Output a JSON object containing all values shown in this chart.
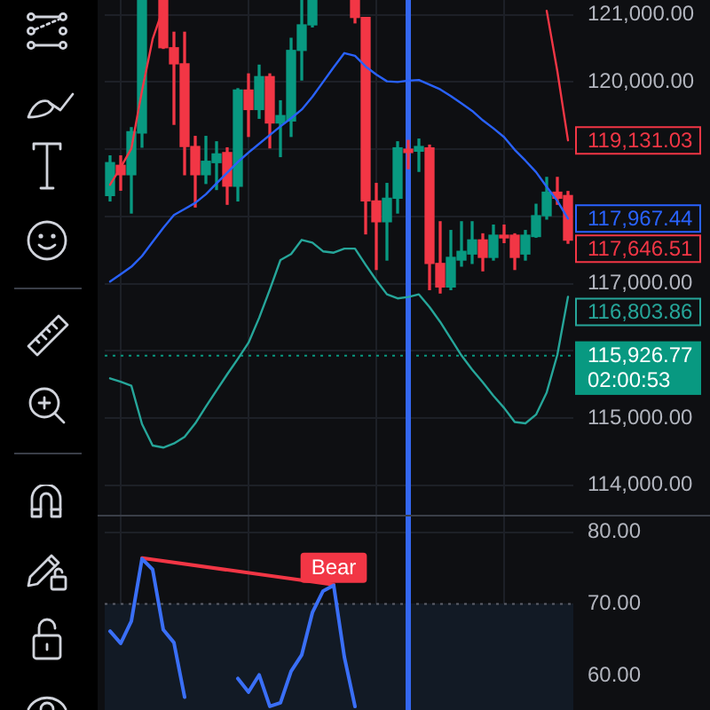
{
  "chart_data": [
    {
      "type": "candlestick",
      "categories": [
        null,
        null,
        null,
        null,
        null,
        null,
        null,
        null,
        null,
        null,
        null,
        null,
        null,
        null,
        null,
        null,
        null,
        null,
        null,
        null,
        null,
        null,
        null,
        null,
        null,
        null,
        null,
        null,
        null,
        null,
        null,
        null,
        null,
        null,
        null,
        null,
        null,
        null,
        null,
        null,
        null,
        null,
        null,
        null
      ],
      "ohlc": [
        [
          118310,
          118900,
          118230,
          118800
        ],
        [
          118760,
          118900,
          118390,
          118620
        ],
        [
          118620,
          119320,
          118050,
          119260
        ],
        [
          119240,
          121220,
          119030,
          121220
        ],
        null,
        [
          121220,
          121220,
          120500,
          120510
        ],
        [
          120510,
          120740,
          119370,
          120270
        ],
        [
          120270,
          120740,
          118620,
          119040
        ],
        [
          119040,
          119190,
          118140,
          118620
        ],
        [
          118620,
          119190,
          118490,
          118820
        ],
        [
          118800,
          119110,
          118400,
          118930
        ],
        [
          118950,
          119020,
          118180,
          118450
        ],
        [
          118450,
          119900,
          118230,
          119880
        ],
        [
          119880,
          120120,
          119190,
          119590
        ],
        [
          119590,
          120250,
          119460,
          120080
        ],
        [
          120080,
          120120,
          119020,
          119390
        ],
        [
          119390,
          119720,
          118890,
          119500
        ],
        [
          119420,
          120650,
          119190,
          120470
        ],
        [
          120470,
          121220,
          120030,
          120850
        ],
        [
          120850,
          121220,
          120820,
          121220
        ],
        null,
        null,
        null,
        [
          121220,
          121220,
          120880,
          120960
        ],
        [
          120960,
          120960,
          117740,
          118230
        ],
        [
          118230,
          118490,
          117210,
          117920
        ],
        [
          117920,
          118490,
          117350,
          118270
        ],
        [
          118270,
          119110,
          118050,
          119020
        ],
        [
          119000,
          119130,
          118710,
          118950
        ],
        [
          118970,
          119150,
          118670,
          119040
        ],
        [
          119020,
          119060,
          116910,
          117300
        ],
        [
          117300,
          117920,
          116860,
          116950
        ],
        [
          116950,
          117790,
          116910,
          117390
        ],
        [
          117350,
          117920,
          117260,
          117480
        ],
        [
          117440,
          117920,
          117300,
          117650
        ],
        [
          117650,
          117740,
          117190,
          117390
        ],
        [
          117390,
          117870,
          117350,
          117720
        ],
        [
          117720,
          117870,
          117610,
          117680
        ],
        [
          117720,
          117740,
          117210,
          117390
        ],
        [
          117440,
          117790,
          117350,
          117720
        ],
        [
          117700,
          118180,
          117690,
          118010
        ],
        [
          118010,
          118580,
          117960,
          118360
        ],
        [
          118360,
          118580,
          118180,
          118270
        ],
        [
          118310,
          118370,
          117600,
          117646.51
        ]
      ],
      "colors": [
        "#089981",
        "#f23645",
        "#089981",
        "#089981",
        null,
        "#f23645",
        "#f23645",
        "#f23645",
        "#f23645",
        "#089981",
        "#089981",
        "#f23645",
        "#089981",
        "#f23645",
        "#089981",
        "#f23645",
        "#089981",
        "#089981",
        "#089981",
        "#089981",
        null,
        null,
        null,
        "#f23645",
        "#f23645",
        "#f23645",
        "#089981",
        "#089981",
        "#f23645",
        "#089981",
        "#f23645",
        "#f23645",
        "#089981",
        "#089981",
        "#089981",
        "#f23645",
        "#089981",
        "#f23645",
        "#f23645",
        "#089981",
        "#089981",
        "#089981",
        "#f23645",
        "#f23645"
      ],
      "series": [
        {
          "type": "line",
          "color": "#f23645",
          "values": [
            118470,
            118730,
            119010,
            119870,
            120640,
            121100,
            null,
            null,
            null,
            null,
            null,
            null,
            null,
            null,
            null,
            null,
            null,
            null,
            null,
            null,
            null,
            null,
            null,
            null,
            null,
            null,
            null,
            null,
            null,
            null,
            null,
            null,
            null,
            null,
            null,
            null,
            null,
            null,
            null,
            null,
            null,
            121060,
            120160,
            119131.03
          ],
          "value_labels": [
            null,
            null,
            null,
            null,
            null,
            null,
            null,
            null,
            null,
            null,
            null,
            null,
            null,
            null,
            null,
            null,
            null,
            null,
            null,
            null,
            null,
            null,
            null,
            null,
            null,
            null,
            null,
            null,
            null,
            null,
            null,
            null,
            null,
            null,
            null,
            null,
            null,
            null,
            null,
            null,
            null,
            null,
            null,
            "119,131.03"
          ]
        },
        {
          "type": "line",
          "color": "#2962ff",
          "values": [
            117030,
            117140,
            117250,
            117410,
            117620,
            117830,
            118020,
            118110,
            118200,
            118330,
            118490,
            118650,
            118810,
            118950,
            119080,
            119210,
            119340,
            119460,
            119590,
            119780,
            120000,
            120220,
            120430,
            120390,
            120230,
            120110,
            120010,
            120000,
            120020,
            120030,
            119960,
            119890,
            119790,
            119680,
            119570,
            119430,
            119310,
            119180,
            118990,
            118830,
            118660,
            118440,
            118230,
            117967.44
          ],
          "value_labels": [
            null,
            null,
            null,
            null,
            null,
            null,
            null,
            null,
            null,
            null,
            null,
            null,
            null,
            null,
            null,
            null,
            null,
            null,
            null,
            null,
            null,
            null,
            null,
            null,
            null,
            null,
            null,
            null,
            null,
            null,
            null,
            null,
            null,
            null,
            null,
            null,
            null,
            null,
            null,
            null,
            null,
            null,
            null,
            "117,967.44"
          ]
        },
        {
          "type": "line",
          "color": "#26a69a",
          "values": [
            115590,
            115540,
            115480,
            114910,
            114590,
            114560,
            114620,
            114720,
            114920,
            115170,
            115410,
            115650,
            115880,
            116120,
            116490,
            116910,
            117350,
            117440,
            117650,
            117610,
            117480,
            117460,
            117520,
            117520,
            117280,
            117050,
            116840,
            116780,
            116800,
            116840,
            116650,
            116430,
            116180,
            115930,
            115720,
            115530,
            115330,
            115150,
            114940,
            114920,
            115050,
            115380,
            115940,
            116803.86
          ],
          "value_labels": [
            null,
            null,
            null,
            null,
            null,
            null,
            null,
            null,
            null,
            null,
            null,
            null,
            null,
            null,
            null,
            null,
            null,
            null,
            null,
            null,
            null,
            null,
            null,
            null,
            null,
            null,
            null,
            null,
            null,
            null,
            null,
            null,
            null,
            null,
            null,
            null,
            null,
            null,
            null,
            null,
            null,
            null,
            null,
            "116,803.86"
          ]
        }
      ],
      "ylim": [
        113560,
        121220
      ],
      "yticks": [
        {
          "value": 114000,
          "label": "114,000.00"
        },
        {
          "value": 115000,
          "label": "115,000.00"
        },
        {
          "value": 116000,
          "label": null
        },
        {
          "value": 117000,
          "label": "117,000.00"
        },
        {
          "value": 118000,
          "label": null
        },
        {
          "value": 119000,
          "label": null
        },
        {
          "value": 120000,
          "label": "120,000.00"
        },
        {
          "value": 121000,
          "label": "121,000.00"
        }
      ],
      "ref_lines": [
        {
          "axis": "y",
          "value": 115926.77,
          "label": "115,926.77\n02:00:53",
          "color": "#089981",
          "line_style": "dotted"
        }
      ],
      "annotations": [
        "117,646.51"
      ],
      "grid": true,
      "tick_labels": "y",
      "marker": "none"
    },
    {
      "type": "line",
      "categories": [
        null,
        null,
        null,
        null,
        null,
        null,
        null,
        null,
        null,
        null,
        null,
        null,
        null,
        null,
        null,
        null,
        null,
        null,
        null,
        null,
        null,
        null,
        null,
        null,
        null,
        null,
        null,
        null,
        null,
        null,
        null,
        null,
        null,
        null,
        null,
        null,
        null,
        null,
        null,
        null,
        null,
        null,
        null,
        null
      ],
      "series": [
        {
          "color": "#3a6ff7",
          "values": [
            66.2,
            64.5,
            67.6,
            76.3,
            74.8,
            66.4,
            64.6,
            57.0,
            null,
            null,
            null,
            null,
            59.6,
            57.7,
            60.1,
            55.7,
            56.2,
            60.6,
            62.9,
            68.8,
            71.8,
            72.6,
            62.6,
            55.7,
            null,
            null,
            null,
            null,
            null,
            null,
            null,
            null,
            null,
            null,
            null,
            null,
            null,
            null,
            null,
            null,
            null,
            null,
            null,
            null
          ]
        },
        {
          "color": "#f23645",
          "values": [
            null,
            null,
            null,
            76.4,
            null,
            null,
            null,
            null,
            null,
            null,
            null,
            null,
            null,
            null,
            null,
            null,
            null,
            null,
            null,
            null,
            null,
            72.7,
            null,
            null,
            null,
            null,
            null,
            null,
            null,
            null,
            null,
            null,
            null,
            null,
            null,
            null,
            null,
            null,
            null,
            null,
            null,
            null,
            null,
            null
          ],
          "value_labels": [
            null,
            null,
            null,
            null,
            null,
            null,
            null,
            null,
            null,
            null,
            null,
            null,
            null,
            null,
            null,
            null,
            null,
            null,
            null,
            null,
            null,
            "Bear",
            null,
            null,
            null,
            null,
            null,
            null,
            null,
            null,
            null,
            null,
            null,
            null,
            null,
            null,
            null,
            null,
            null,
            null,
            null,
            null,
            null,
            null
          ]
        }
      ],
      "ylim": [
        55.2,
        82.2
      ],
      "yticks": [
        {
          "value": 60,
          "label": "60.00"
        },
        {
          "value": 70,
          "label": "70.00"
        },
        {
          "value": 80,
          "label": "80.00"
        }
      ],
      "bands": [
        {
          "axis": "y",
          "from": 55.2,
          "to": 70,
          "color": "#121a25"
        }
      ],
      "ref_lines": [
        {
          "axis": "y",
          "value": 70,
          "color": "#5d606b",
          "line_style": "dotted"
        }
      ],
      "grid": true,
      "tick_labels": "y",
      "marker": "none"
    }
  ]
}
